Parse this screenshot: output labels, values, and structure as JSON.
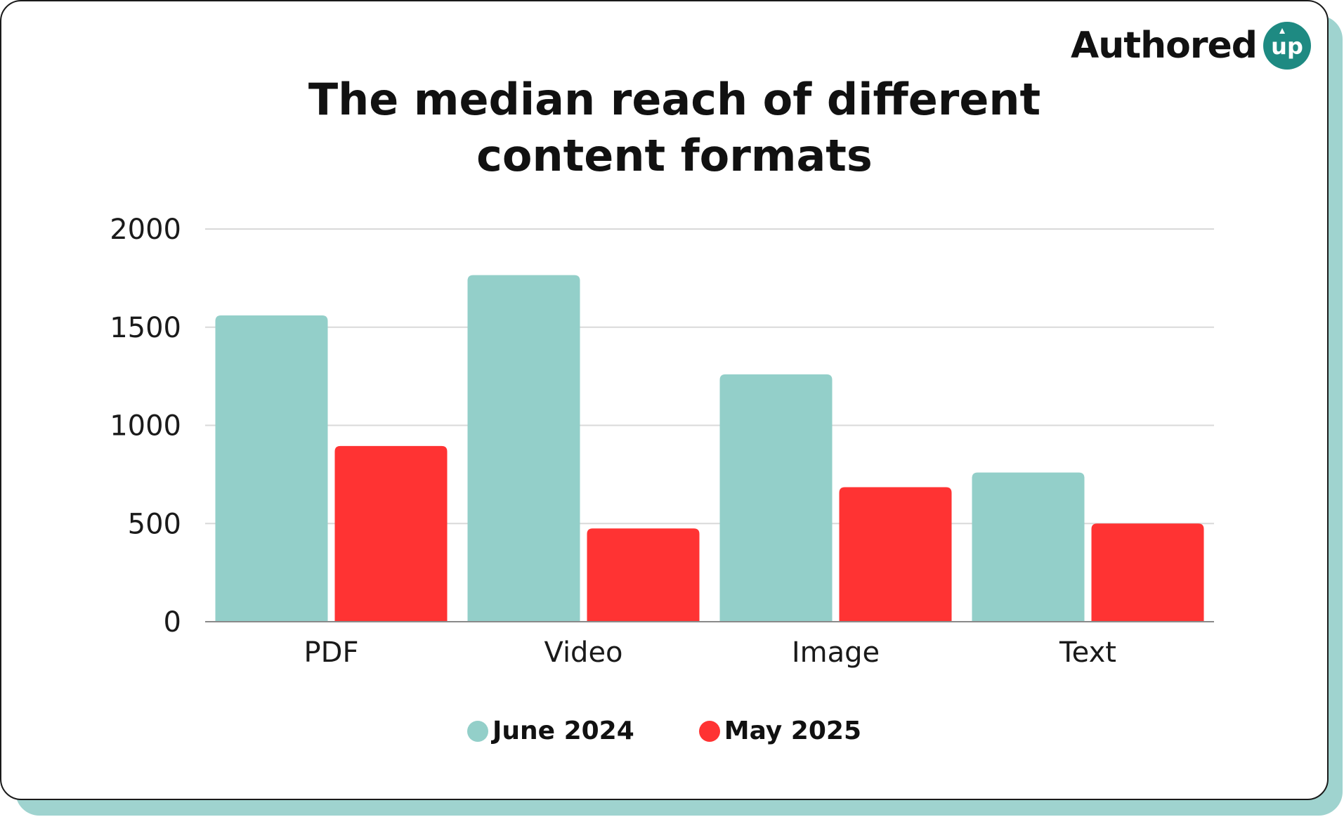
{
  "brand": {
    "logo_text": "Authored",
    "logo_badge_text": "up",
    "badge_color": "#1e8a82"
  },
  "colors": {
    "june_2024": "#93cfc9",
    "may_2025": "#ff3333",
    "card_shadow": "#9fd3cf",
    "gridline": "#d9d9d9"
  },
  "chart_data": {
    "type": "bar",
    "title_line1": "The median reach of different",
    "title_line2": "content formats",
    "xlabel": "",
    "ylabel": "",
    "categories": [
      "PDF",
      "Video",
      "Image",
      "Text"
    ],
    "series": [
      {
        "name": "June 2024",
        "values": [
          1560,
          1765,
          1260,
          760
        ],
        "color": "#93cfc9"
      },
      {
        "name": "May 2025",
        "values": [
          895,
          475,
          685,
          500
        ],
        "color": "#ff3333"
      }
    ],
    "ylim": [
      0,
      2000
    ],
    "yticks": [
      0,
      500,
      1000,
      1500,
      2000
    ],
    "grid": true,
    "legend_position": "bottom"
  }
}
